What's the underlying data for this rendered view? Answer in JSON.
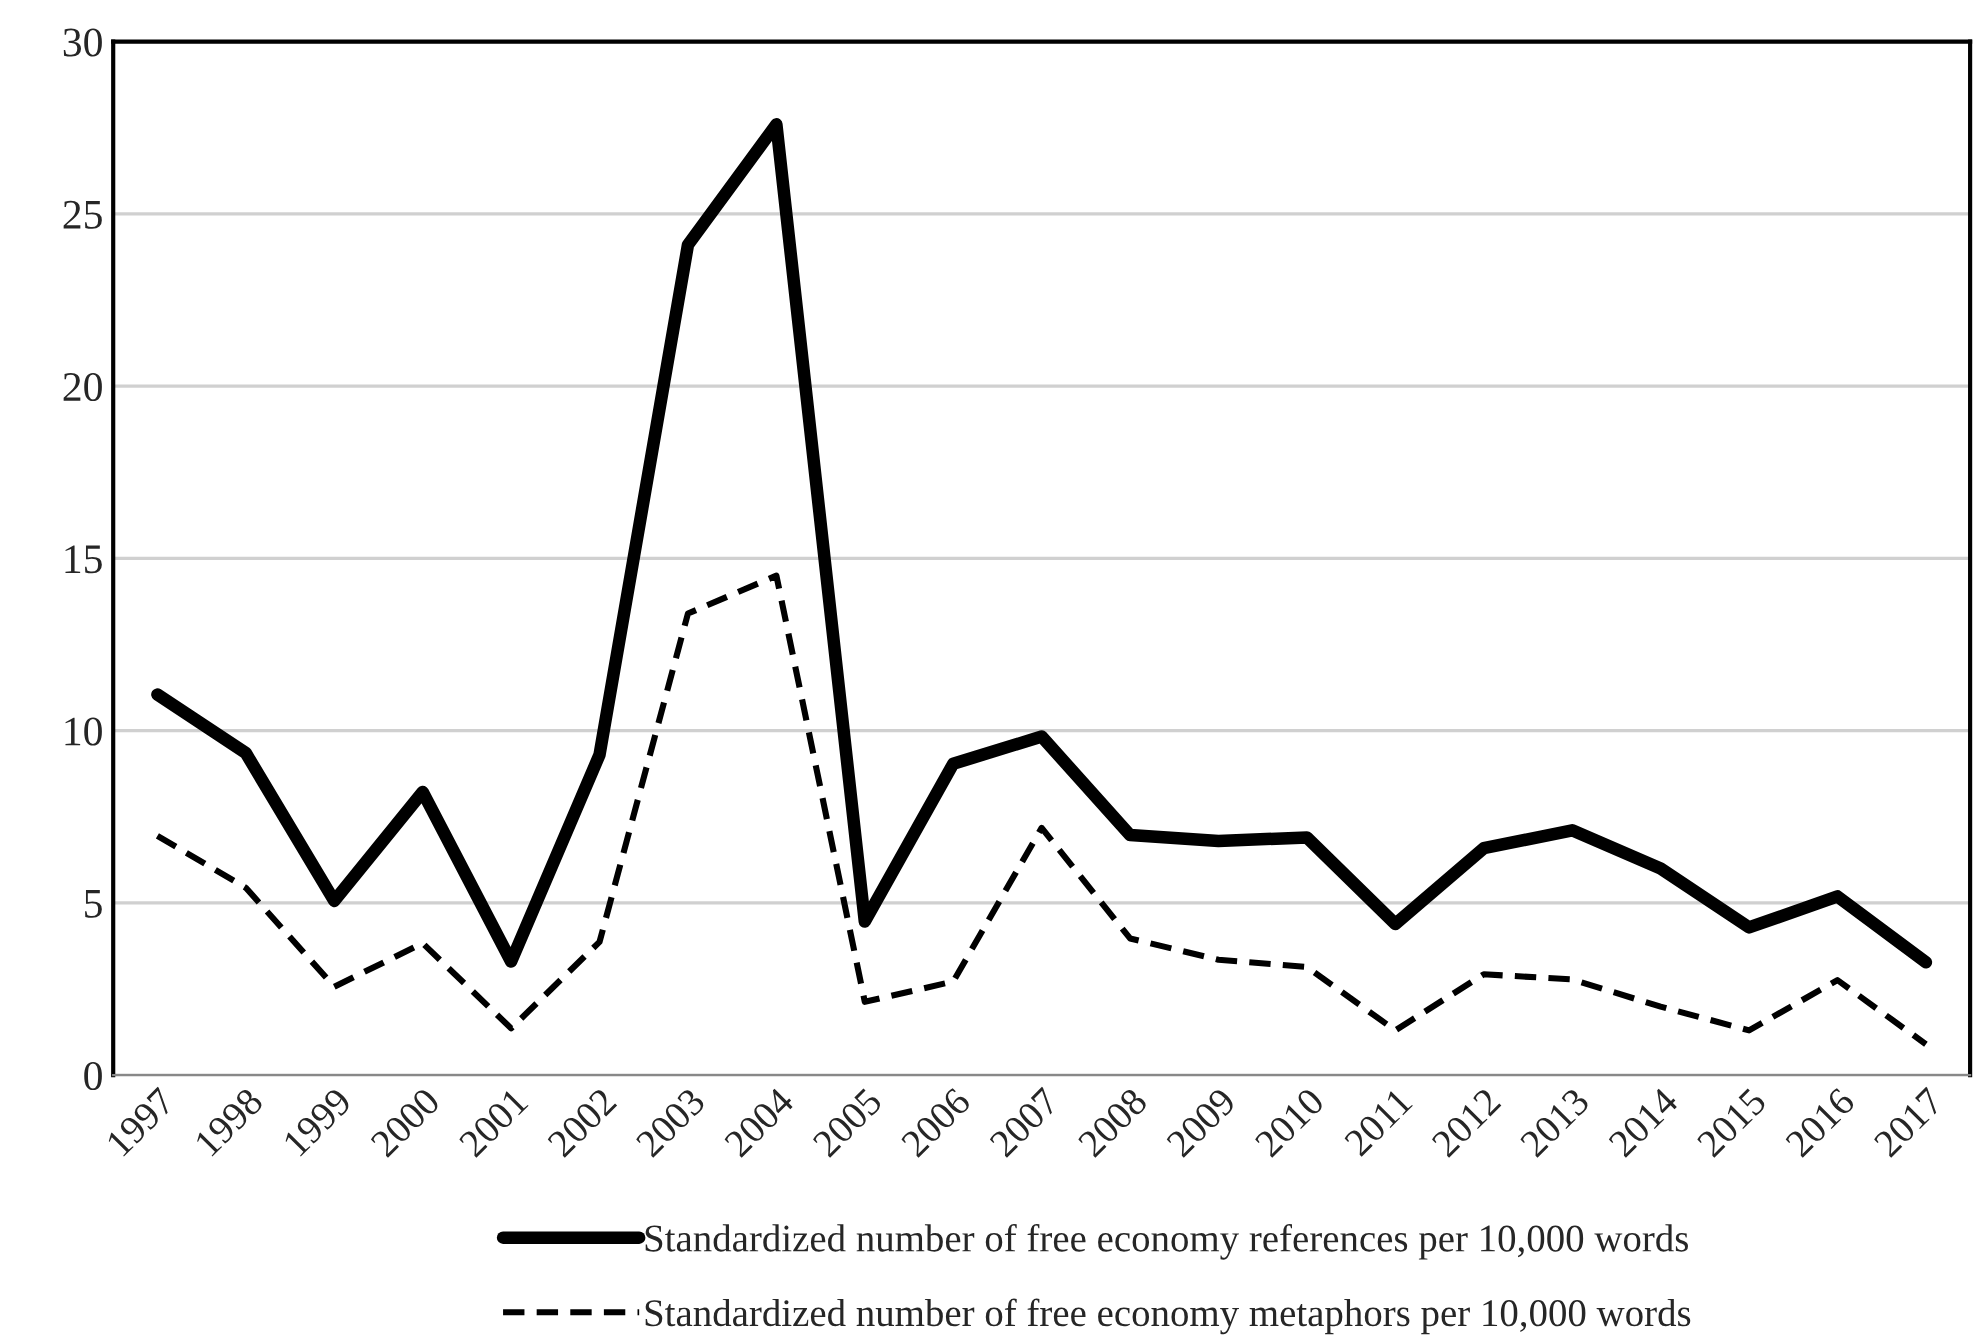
{
  "chart_data": {
    "type": "line",
    "categories": [
      "1997",
      "1998",
      "1999",
      "2000",
      "2001",
      "2002",
      "2003",
      "2004",
      "2005",
      "2006",
      "2007",
      "2008",
      "2009",
      "2010",
      "2011",
      "2012",
      "2013",
      "2014",
      "2015",
      "2016",
      "2017"
    ],
    "series": [
      {
        "name": "Standardized number of free economy references per 10,000 words",
        "color": "#000000",
        "line_style": "solid",
        "values": [
          11.05,
          9.35,
          5.06,
          8.22,
          3.3,
          9.3,
          24.1,
          27.6,
          4.46,
          9.04,
          9.83,
          6.97,
          6.8,
          6.9,
          4.39,
          6.59,
          7.11,
          6.0,
          4.29,
          5.19,
          3.28
        ]
      },
      {
        "name": "Standardized number of free economy metaphors per 10,000 words",
        "color": "#000000",
        "line_style": "dashed",
        "values": [
          6.95,
          5.44,
          2.57,
          3.83,
          1.36,
          3.87,
          13.4,
          14.5,
          2.13,
          2.72,
          7.18,
          3.97,
          3.35,
          3.14,
          1.3,
          2.93,
          2.78,
          1.99,
          1.3,
          2.76,
          0.9
        ]
      }
    ],
    "ylim": [
      0,
      30
    ],
    "yticks": [
      0,
      5,
      10,
      15,
      20,
      25,
      30
    ],
    "grid": "y",
    "legend": "bottom"
  }
}
